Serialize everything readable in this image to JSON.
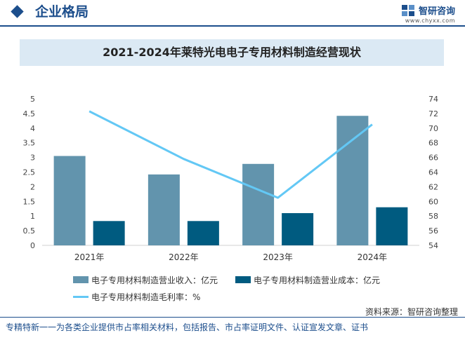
{
  "header": {
    "section_title": "企业格局",
    "brand_name": "智研咨询",
    "brand_url": "www.chyxx.com"
  },
  "chart_data": {
    "type": "bar",
    "title": "2021-2024年莱特光电电子专用材料制造经营现状",
    "categories": [
      "2021年",
      "2022年",
      "2023年",
      "2024年"
    ],
    "series": [
      {
        "name": "电子专用材料制造营业收入：亿元",
        "kind": "bar",
        "axis": "left",
        "color": "#6294ad",
        "values": [
          3.05,
          2.42,
          2.78,
          4.42
        ]
      },
      {
        "name": "电子专用材料制造营业成本：亿元",
        "kind": "bar",
        "axis": "left",
        "color": "#005b80",
        "values": [
          0.83,
          0.83,
          1.1,
          1.3
        ]
      },
      {
        "name": "电子专用材料制造毛利率：%",
        "kind": "line",
        "axis": "right",
        "color": "#63c8f5",
        "values": [
          72.3,
          65.8,
          60.5,
          70.5
        ]
      }
    ],
    "y_left": {
      "min": 0,
      "max": 5,
      "ticks": [
        "0",
        "0.5",
        "1",
        "1.5",
        "2",
        "2.5",
        "3",
        "3.5",
        "4",
        "4.5",
        "5"
      ]
    },
    "y_right": {
      "min": 54,
      "max": 74,
      "ticks": [
        "54",
        "56",
        "58",
        "60",
        "62",
        "64",
        "66",
        "68",
        "70",
        "72",
        "74"
      ]
    },
    "grid": false,
    "legend_position": "bottom-left"
  },
  "source_text": "资料来源：智研咨询整理",
  "footer_text": "专精特新一一为各类企业提供市占率相关材料，包括报告、市占率证明文件、认证宣发文章、证书"
}
